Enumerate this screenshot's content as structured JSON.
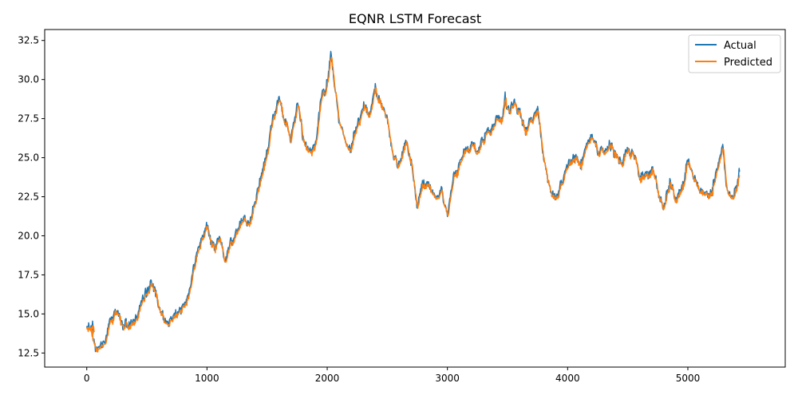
{
  "chart_data": {
    "type": "line",
    "title": "EQNR LSTM Forecast",
    "xlabel": "",
    "ylabel": "",
    "xlim": [
      -350,
      5810
    ],
    "ylim": [
      11.6,
      33.2
    ],
    "x_ticks": [
      0,
      1000,
      2000,
      3000,
      4000,
      5000
    ],
    "x_tick_labels": [
      "0",
      "1000",
      "2000",
      "3000",
      "4000",
      "5000"
    ],
    "y_ticks": [
      12.5,
      15.0,
      17.5,
      20.0,
      22.5,
      25.0,
      27.5,
      30.0,
      32.5
    ],
    "y_tick_labels": [
      "12.5",
      "15.0",
      "17.5",
      "20.0",
      "22.5",
      "25.0",
      "27.5",
      "30.0",
      "32.5"
    ],
    "grid": false,
    "legend_position": "top-right",
    "keypoints": [
      [
        0,
        14.2
      ],
      [
        60,
        14.0
      ],
      [
        40,
        13.8
      ],
      [
        80,
        12.9
      ],
      [
        150,
        13.2
      ],
      [
        200,
        14.6
      ],
      [
        260,
        15.0
      ],
      [
        300,
        14.3
      ],
      [
        400,
        14.4
      ],
      [
        450,
        15.6
      ],
      [
        500,
        16.3
      ],
      [
        540,
        16.9
      ],
      [
        580,
        16.3
      ],
      [
        620,
        14.9
      ],
      [
        660,
        14.3
      ],
      [
        700,
        14.6
      ],
      [
        760,
        15.3
      ],
      [
        820,
        15.9
      ],
      [
        880,
        17.4
      ],
      [
        950,
        19.8
      ],
      [
        1000,
        20.5
      ],
      [
        1050,
        19.2
      ],
      [
        1100,
        19.7
      ],
      [
        1150,
        18.7
      ],
      [
        1200,
        19.5
      ],
      [
        1250,
        20.5
      ],
      [
        1300,
        21.2
      ],
      [
        1350,
        20.9
      ],
      [
        1400,
        22.1
      ],
      [
        1450,
        24.1
      ],
      [
        1500,
        25.3
      ],
      [
        1550,
        27.6
      ],
      [
        1600,
        28.9
      ],
      [
        1650,
        27.3
      ],
      [
        1700,
        26.0
      ],
      [
        1750,
        28.5
      ],
      [
        1800,
        26.1
      ],
      [
        1850,
        25.4
      ],
      [
        1900,
        26.0
      ],
      [
        1950,
        28.5
      ],
      [
        2000,
        29.6
      ],
      [
        2030,
        31.8
      ],
      [
        2060,
        29.7
      ],
      [
        2100,
        27.6
      ],
      [
        2150,
        26.3
      ],
      [
        2200,
        25.5
      ],
      [
        2250,
        27.2
      ],
      [
        2300,
        28.6
      ],
      [
        2350,
        27.8
      ],
      [
        2400,
        29.5
      ],
      [
        2450,
        28.4
      ],
      [
        2500,
        27.6
      ],
      [
        2550,
        25.0
      ],
      [
        2600,
        24.5
      ],
      [
        2650,
        25.9
      ],
      [
        2700,
        24.6
      ],
      [
        2750,
        22.0
      ],
      [
        2800,
        23.3
      ],
      [
        2850,
        23.0
      ],
      [
        2900,
        22.6
      ],
      [
        2950,
        22.8
      ],
      [
        3000,
        21.3
      ],
      [
        3050,
        24.1
      ],
      [
        3100,
        24.6
      ],
      [
        3150,
        25.4
      ],
      [
        3200,
        25.8
      ],
      [
        3250,
        25.2
      ],
      [
        3300,
        26.1
      ],
      [
        3350,
        26.7
      ],
      [
        3400,
        27.4
      ],
      [
        3450,
        27.8
      ],
      [
        3480,
        29.0
      ],
      [
        3500,
        28.2
      ],
      [
        3550,
        28.5
      ],
      [
        3600,
        28.0
      ],
      [
        3650,
        27.1
      ],
      [
        3700,
        27.6
      ],
      [
        3750,
        27.9
      ],
      [
        3800,
        24.8
      ],
      [
        3850,
        23.3
      ],
      [
        3900,
        22.4
      ],
      [
        3950,
        23.3
      ],
      [
        4000,
        24.5
      ],
      [
        4050,
        25.0
      ],
      [
        4100,
        24.6
      ],
      [
        4150,
        25.4
      ],
      [
        4200,
        26.5
      ],
      [
        4250,
        25.7
      ],
      [
        4300,
        25.3
      ],
      [
        4350,
        26.0
      ],
      [
        4400,
        25.2
      ],
      [
        4450,
        24.5
      ],
      [
        4500,
        25.7
      ],
      [
        4550,
        25.2
      ],
      [
        4600,
        23.7
      ],
      [
        4650,
        23.9
      ],
      [
        4700,
        24.4
      ],
      [
        4750,
        23.0
      ],
      [
        4800,
        21.6
      ],
      [
        4850,
        23.5
      ],
      [
        4900,
        22.5
      ],
      [
        4950,
        23.1
      ],
      [
        5000,
        24.8
      ],
      [
        5050,
        23.6
      ],
      [
        5100,
        23.0
      ],
      [
        5150,
        22.8
      ],
      [
        5200,
        22.9
      ],
      [
        5250,
        24.6
      ],
      [
        5290,
        26.2
      ],
      [
        5320,
        23.0
      ],
      [
        5360,
        22.6
      ],
      [
        5400,
        22.9
      ],
      [
        5430,
        24.1
      ]
    ],
    "series": [
      {
        "name": "Actual",
        "color": "#1f77b4"
      },
      {
        "name": "Predicted",
        "color": "#ff7f0e"
      }
    ]
  }
}
